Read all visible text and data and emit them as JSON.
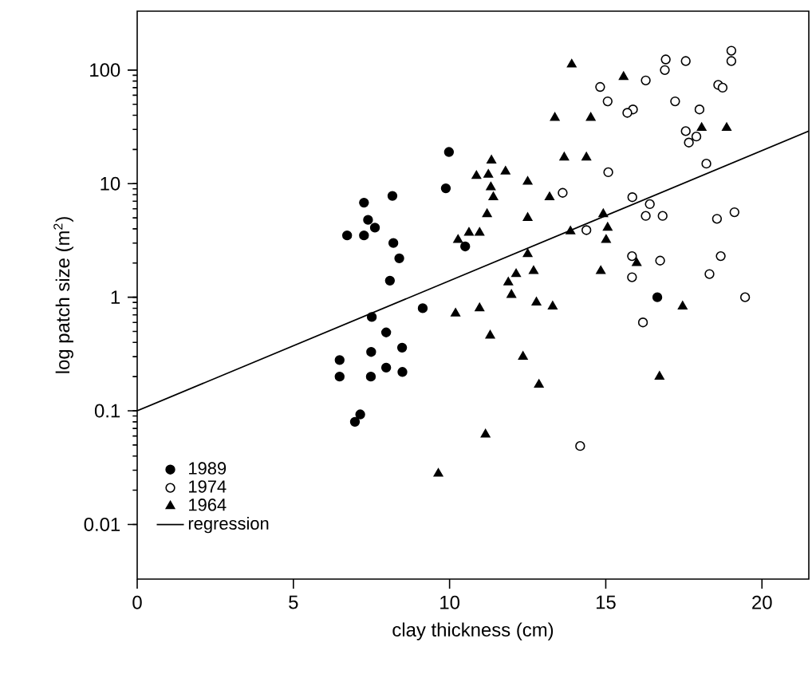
{
  "chart_data": {
    "type": "scatter",
    "xlabel": "clay thickness (cm)",
    "ylabel": "log patch size (m$^{2}$)",
    "xlim": [
      0,
      21.5
    ],
    "ylim": [
      0.0033,
      330
    ],
    "xticks": [
      0,
      5,
      10,
      15,
      20
    ],
    "yticks": [
      0.01,
      0.1,
      1,
      10,
      100
    ],
    "log": "y",
    "grid": false,
    "legend": "bottom left",
    "series": [
      {
        "name": "1989",
        "color": "#000000",
        "marker": "circle",
        "x": [
          9.98,
          9.88,
          7.26,
          8.17,
          7.39,
          7.61,
          6.72,
          7.26,
          8.2,
          8.39,
          8.09,
          9.14,
          7.51,
          7.97,
          8.48,
          7.49,
          6.48,
          7.97,
          6.48,
          7.48,
          8.49,
          7.14,
          6.97,
          10.5,
          16.65
        ],
        "values": [
          19,
          9.1,
          6.8,
          7.8,
          4.8,
          4.1,
          3.5,
          3.5,
          3.0,
          2.2,
          1.4,
          0.8,
          0.67,
          0.49,
          0.36,
          0.33,
          0.28,
          0.24,
          0.2,
          0.2,
          0.22,
          0.093,
          0.08,
          2.8,
          1.0
        ]
      },
      {
        "name": "1974",
        "color": "#000000",
        "marker": "open circle",
        "x": [
          16.92,
          17.56,
          16.89,
          19.02,
          19.02,
          16.28,
          14.82,
          15.06,
          18.6,
          18.74,
          17.22,
          18.0,
          15.87,
          15.69,
          17.56,
          17.9,
          17.66,
          18.22,
          15.08,
          13.62,
          15.85,
          16.41,
          16.28,
          16.82,
          19.12,
          18.56,
          14.38,
          15.84,
          16.74,
          18.68,
          15.84,
          18.32,
          19.46,
          16.19,
          14.18
        ],
        "values": [
          124,
          120,
          100,
          148,
          120,
          81,
          71,
          53,
          74,
          70,
          53,
          45,
          45,
          42,
          29,
          26,
          23,
          15,
          12.6,
          8.3,
          7.6,
          6.6,
          5.2,
          5.2,
          5.6,
          4.9,
          3.9,
          2.3,
          2.1,
          2.3,
          1.5,
          1.6,
          1.0,
          0.6,
          0.049
        ]
      },
      {
        "name": "1964",
        "color": "#000000",
        "marker": "triangle",
        "x": [
          13.91,
          15.57,
          13.37,
          14.52,
          18.07,
          18.87,
          13.67,
          14.38,
          11.34,
          10.86,
          11.24,
          11.79,
          12.5,
          11.32,
          11.4,
          13.2,
          11.2,
          12.5,
          14.92,
          15.06,
          13.87,
          15.01,
          10.62,
          10.96,
          12.5,
          12.13,
          12.69,
          11.88,
          11.98,
          15.99,
          14.84,
          12.78,
          13.3,
          10.96,
          17.46,
          11.3,
          12.35,
          12.86,
          11.15,
          16.72,
          9.64,
          10.19,
          10.27
        ],
        "values": [
          112,
          87,
          38,
          38,
          31,
          31,
          17,
          17,
          16,
          11.7,
          12,
          12.8,
          10.4,
          9.3,
          7.6,
          7.6,
          5.4,
          5.0,
          5.4,
          4.1,
          3.8,
          3.2,
          3.7,
          3.7,
          2.4,
          1.6,
          1.7,
          1.35,
          1.05,
          2.0,
          1.7,
          0.9,
          0.83,
          0.8,
          0.83,
          0.46,
          0.3,
          0.17,
          0.062,
          0.2,
          0.028,
          0.72,
          3.2
        ]
      },
      {
        "name": "regression",
        "type": "line",
        "color": "#000000",
        "marker": "none",
        "line_style": "solid",
        "x": [
          0,
          21.5
        ],
        "values": [
          0.1,
          29
        ]
      }
    ]
  }
}
